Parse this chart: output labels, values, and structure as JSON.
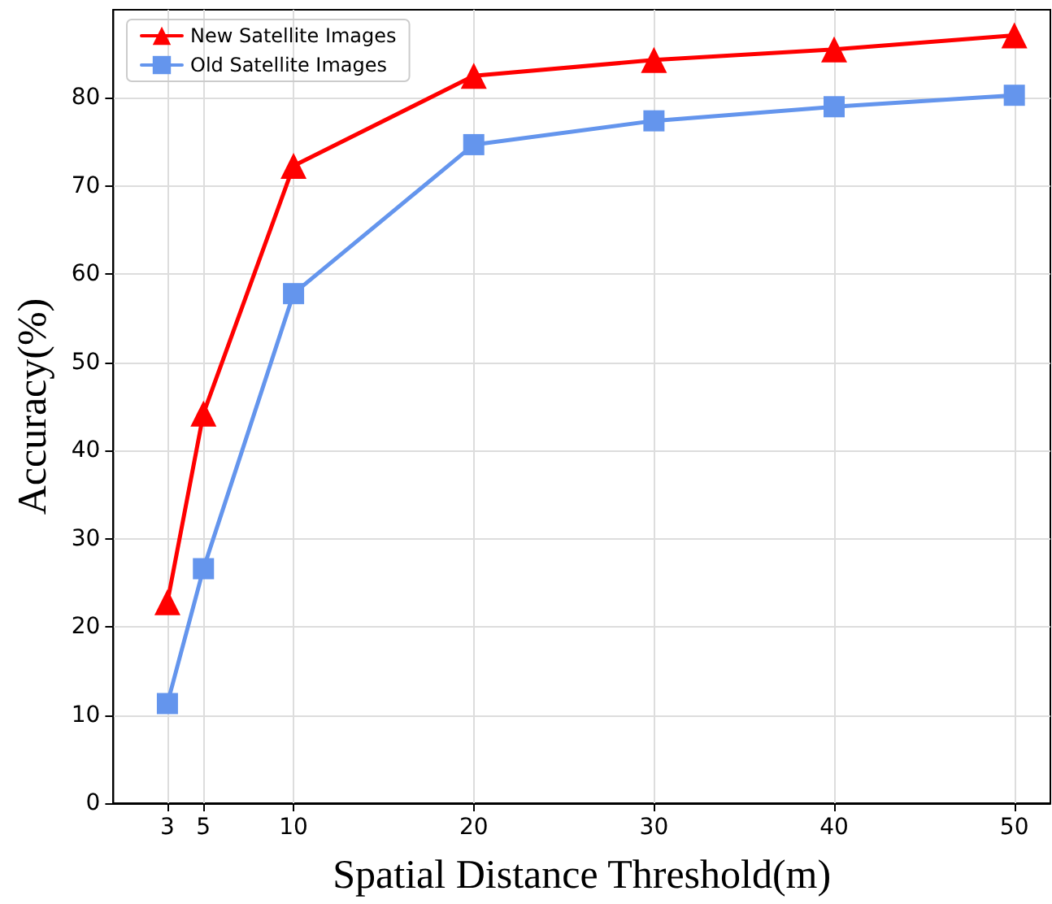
{
  "chart_data": {
    "type": "line",
    "xlabel": "Spatial Distance Threshold(m)",
    "ylabel": "Accuracy(%)",
    "x": [
      3,
      5,
      10,
      20,
      30,
      40,
      50
    ],
    "series": [
      {
        "name": "New Satellite Images",
        "color": "#ff0000",
        "marker": "triangle",
        "values": [
          22.8,
          44.2,
          72.3,
          82.5,
          84.3,
          85.5,
          87.1
        ]
      },
      {
        "name": "Old Satellite Images",
        "color": "#6495ed",
        "marker": "square",
        "values": [
          11.3,
          26.6,
          57.8,
          74.7,
          77.4,
          79.0,
          80.3
        ]
      }
    ],
    "xlim": [
      0,
      52
    ],
    "xticks": [
      3,
      5,
      10,
      20,
      30,
      40,
      50
    ],
    "ylim": [
      0,
      90
    ],
    "yticks": [
      0,
      10,
      20,
      30,
      40,
      50,
      60,
      70,
      80
    ],
    "grid": true,
    "legend": "top left",
    "line_style": "solid"
  }
}
